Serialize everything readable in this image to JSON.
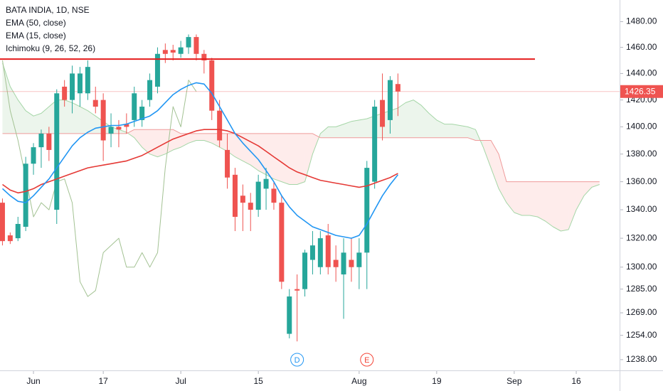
{
  "chart_data": {
    "type": "candlestick",
    "title": "BATA INDIA, 1D, NSE",
    "log_scale": true,
    "grid": false,
    "categories": [
      null,
      null,
      null,
      null,
      "Jun",
      null,
      null,
      null,
      null,
      null,
      null,
      null,
      null,
      "17",
      null,
      null,
      null,
      null,
      null,
      null,
      null,
      null,
      null,
      "Jul",
      null,
      null,
      null,
      null,
      null,
      null,
      null,
      null,
      null,
      "15",
      null,
      null,
      null,
      null,
      null,
      null,
      null,
      null,
      null,
      null,
      null,
      null,
      "Aug",
      null,
      null,
      null,
      null,
      null,
      null,
      null,
      null,
      null,
      "19",
      null,
      null,
      null,
      null,
      null,
      null,
      null,
      null,
      null,
      "Sep",
      null,
      null,
      null,
      null,
      null,
      null,
      null,
      "16",
      null,
      null,
      null,
      null,
      null
    ],
    "open": [
      1345,
      1322,
      1320,
      1328,
      1373,
      1385,
      1395,
      1340,
      1430,
      1420,
      1425,
      1425,
      1420,
      1420,
      1395,
      1400,
      1402,
      1405,
      1405,
      1420,
      1430,
      1458,
      1458,
      1455,
      1460,
      1468,
      1455,
      1450,
      1412,
      1383,
      1365,
      1350,
      1345,
      1340,
      1355,
      1355,
      1345,
      1255,
      1285,
      1285,
      1305,
      1300,
      1322,
      1305,
      1295,
      1305,
      1300,
      1310,
      1360,
      1420,
      1405,
      1432,
      null,
      null,
      null,
      null,
      null,
      null,
      null,
      null,
      null,
      null,
      null,
      null,
      null,
      null,
      null,
      null,
      null,
      null,
      null,
      null,
      null,
      null,
      null,
      null,
      null,
      null,
      null,
      null
    ],
    "high": [
      1348,
      1324,
      1335,
      1378,
      1388,
      1398,
      1400,
      1428,
      1435,
      1446,
      1445,
      1450,
      1430,
      1425,
      1410,
      1405,
      1410,
      1430,
      1420,
      1440,
      1460,
      1463,
      1462,
      1465,
      1470,
      1470,
      1458,
      1452,
      1420,
      1395,
      1370,
      1358,
      1352,
      1365,
      1370,
      1360,
      1350,
      1285,
      1295,
      1312,
      1325,
      1325,
      1330,
      1315,
      1320,
      1320,
      1320,
      1375,
      1420,
      1440,
      1438,
      1440,
      null,
      null,
      null,
      null,
      null,
      null,
      null,
      null,
      null,
      null,
      null,
      null,
      null,
      null,
      null,
      null,
      null,
      null,
      null,
      null,
      null,
      null,
      null,
      null,
      null,
      null,
      null,
      null
    ],
    "low": [
      1315,
      1316,
      1318,
      1325,
      1365,
      1370,
      1375,
      1330,
      1415,
      1410,
      1415,
      1420,
      1410,
      1375,
      1385,
      1385,
      1395,
      1400,
      1400,
      1415,
      1425,
      1448,
      1450,
      1452,
      1455,
      1450,
      1440,
      1405,
      1385,
      1355,
      1325,
      1325,
      1325,
      1335,
      1340,
      1340,
      1285,
      1252,
      1250,
      1280,
      1295,
      1295,
      1295,
      1290,
      1265,
      1290,
      1285,
      1285,
      1355,
      1390,
      1395,
      1408,
      null,
      null,
      null,
      null,
      null,
      null,
      null,
      null,
      null,
      null,
      null,
      null,
      null,
      null,
      null,
      null,
      null,
      null,
      null,
      null,
      null,
      null,
      null,
      null,
      null,
      null,
      null,
      null
    ],
    "close": [
      1318,
      1318,
      1330,
      1373,
      1385,
      1395,
      1383,
      1425,
      1420,
      1440,
      1440,
      1445,
      1415,
      1390,
      1400,
      1398,
      1400,
      1425,
      1415,
      1435,
      1455,
      1455,
      1456,
      1460,
      1468,
      1455,
      1450,
      1412,
      1390,
      1363,
      1335,
      1345,
      1340,
      1360,
      1362,
      1345,
      1290,
      1280,
      1284,
      1310,
      1315,
      1320,
      1300,
      1300,
      1310,
      1300,
      1310,
      1370,
      1415,
      1400,
      1435,
      1426.35,
      null,
      null,
      null,
      null,
      null,
      null,
      null,
      null,
      null,
      null,
      null,
      null,
      null,
      null,
      null,
      null,
      null,
      null,
      null,
      null,
      null,
      null,
      null,
      null,
      null,
      null,
      null,
      null
    ],
    "up_color": "#26a69a",
    "down_color": "#ef5350",
    "series": [
      {
        "name": "EMA (50, close)",
        "color": "#e53935",
        "values": [
          1358,
          1354,
          1352,
          1353,
          1355,
          1358,
          1360,
          1362,
          1364,
          1366,
          1368,
          1370,
          1371,
          1372,
          1373,
          1374,
          1375,
          1377,
          1379,
          1382,
          1385,
          1388,
          1391,
          1393,
          1395,
          1397,
          1398,
          1398,
          1398,
          1397,
          1395,
          1392,
          1389,
          1386,
          1382,
          1378,
          1374,
          1370,
          1367,
          1365,
          1363,
          1361,
          1360,
          1359,
          1358,
          1357,
          1356,
          1357,
          1359,
          1361,
          1363,
          1366,
          null,
          null,
          null,
          null,
          null,
          null,
          null,
          null,
          null,
          null,
          null,
          null,
          null,
          null,
          null,
          null,
          null,
          null,
          null,
          null,
          null,
          null,
          null,
          null,
          null,
          null,
          null,
          null
        ]
      },
      {
        "name": "EMA (15, close)",
        "color": "#2196f3",
        "values": [
          1355,
          1350,
          1346,
          1345,
          1350,
          1356,
          1362,
          1370,
          1378,
          1386,
          1392,
          1396,
          1399,
          1400,
          1401,
          1401,
          1402,
          1404,
          1406,
          1408,
          1412,
          1418,
          1424,
          1428,
          1431,
          1433,
          1432,
          1425,
          1415,
          1405,
          1395,
          1388,
          1382,
          1376,
          1368,
          1360,
          1350,
          1342,
          1336,
          1332,
          1328,
          1326,
          1324,
          1322,
          1321,
          1320,
          1322,
          1330,
          1340,
          1350,
          1358,
          1365,
          null,
          null,
          null,
          null,
          null,
          null,
          null,
          null,
          null,
          null,
          null,
          null,
          null,
          null,
          null,
          null,
          null,
          null,
          null,
          null,
          null,
          null,
          null,
          null,
          null,
          null,
          null,
          null
        ]
      }
    ],
    "ichimoku": {
      "name": "Ichimoku (9, 26, 52, 26)",
      "lagging": {
        "color": "#a3c293",
        "values": [
          1450,
          1412,
          1390,
          1363,
          1335,
          1345,
          1340,
          1360,
          1362,
          1345,
          1290,
          1280,
          1284,
          1310,
          1315,
          1320,
          1300,
          1300,
          1310,
          1300,
          1310,
          1370,
          1415,
          1400,
          1435,
          1426.35,
          null,
          null,
          null,
          null,
          null,
          null,
          null,
          null,
          null,
          null,
          null,
          null,
          null,
          null,
          null,
          null,
          null,
          null,
          null,
          null,
          null,
          null,
          null,
          null,
          null,
          null,
          null,
          null,
          null,
          null,
          null,
          null,
          null,
          null,
          null,
          null,
          null,
          null,
          null,
          null,
          null,
          null,
          null,
          null,
          null,
          null,
          null,
          null,
          null,
          null,
          null,
          null,
          null,
          null
        ]
      },
      "span_a": {
        "color": "#a5d6a7",
        "values": [
          1448,
          1430,
          1420,
          1412,
          1408,
          1410,
          1415,
          1420,
          1420,
          1418,
          1415,
          1412,
          1408,
          1404,
          1400,
          1398,
          1396,
          1392,
          1385,
          1380,
          1378,
          1380,
          1383,
          1385,
          1388,
          1390,
          1390,
          1388,
          1385,
          1382,
          1378,
          1375,
          1372,
          1368,
          1365,
          1362,
          1360,
          1358,
          1358,
          1360,
          1380,
          1395,
          1400,
          1400,
          1402,
          1404,
          1405,
          1406,
          1408,
          1410,
          1412,
          1414,
          1418,
          1420,
          1416,
          1410,
          1405,
          1402,
          1402,
          1401,
          1400,
          1398,
          1385,
          1370,
          1355,
          1345,
          1338,
          1336,
          1336,
          1335,
          1332,
          1328,
          1325,
          1326,
          1340,
          1350,
          1356,
          1358,
          null,
          null
        ]
      },
      "span_b": {
        "color": "#ef9a9a",
        "values": [
          1395,
          1395,
          1395,
          1395,
          1395,
          1395,
          1395,
          1395,
          1395,
          1395,
          1395,
          1395,
          1395,
          1395,
          1395,
          1395,
          1395,
          1398,
          1398,
          1398,
          1398,
          1398,
          1398,
          1395,
          1395,
          1395,
          1395,
          1395,
          1395,
          1395,
          1395,
          1395,
          1395,
          1395,
          1395,
          1395,
          1395,
          1395,
          1395,
          1395,
          1395,
          1392,
          1392,
          1392,
          1392,
          1392,
          1392,
          1392,
          1392,
          1392,
          1392,
          1392,
          1392,
          1392,
          1392,
          1392,
          1392,
          1392,
          1392,
          1392,
          1392,
          1390,
          1390,
          1390,
          1380,
          1360,
          1360,
          1360,
          1360,
          1360,
          1360,
          1360,
          1360,
          1360,
          1360,
          1360,
          1360,
          1360,
          null,
          null
        ]
      },
      "cloud_up_color": "#43a047",
      "cloud_down_color": "#f44336"
    },
    "hline": {
      "value": 1451,
      "color": "#e41c1c"
    },
    "last_price": 1426.35,
    "last_price_color": "#ef5350",
    "events": [
      {
        "label": "D",
        "index": 38,
        "color": "#2196f3"
      },
      {
        "label": "E",
        "index": 47,
        "color": "#f44336"
      }
    ],
    "ylim": [
      1231,
      1497
    ],
    "yticks": [
      {
        "value": 1238,
        "label": "1238.00"
      },
      {
        "value": 1254,
        "label": "1254.00"
      },
      {
        "value": 1269,
        "label": "1269.00"
      },
      {
        "value": 1285,
        "label": "1285.00"
      },
      {
        "value": 1300,
        "label": "1300.00"
      },
      {
        "value": 1320,
        "label": "1320.00"
      },
      {
        "value": 1340,
        "label": "1340.00"
      },
      {
        "value": 1360,
        "label": "1360.00"
      },
      {
        "value": 1380,
        "label": "1380.00"
      },
      {
        "value": 1400,
        "label": "1400.00"
      },
      {
        "value": 1420,
        "label": "1420.00"
      },
      {
        "value": 1440,
        "label": "1440.00"
      },
      {
        "value": 1460,
        "label": "1460.00"
      },
      {
        "value": 1480,
        "label": "1480.00"
      }
    ]
  }
}
